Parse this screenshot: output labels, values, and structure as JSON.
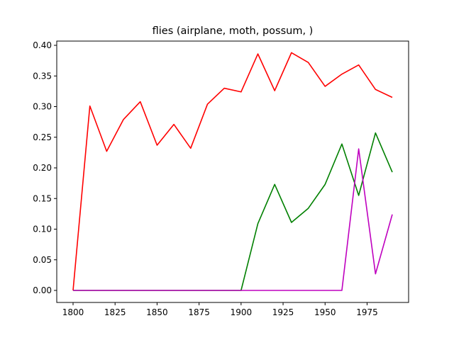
{
  "chart_data": {
    "type": "line",
    "title": "flies (airplane, moth, possum, )",
    "xlabel": "",
    "ylabel": "",
    "xlim": [
      1800,
      1990
    ],
    "ylim": [
      0.0,
      0.4
    ],
    "grid": false,
    "x_ticks": [
      1800,
      1825,
      1850,
      1875,
      1900,
      1925,
      1950,
      1975
    ],
    "x_tick_labels": [
      "1800",
      "1825",
      "1850",
      "1875",
      "1900",
      "1925",
      "1950",
      "1975"
    ],
    "y_ticks": [
      0.0,
      0.05,
      0.1,
      0.15,
      0.2,
      0.25,
      0.3,
      0.35,
      0.4
    ],
    "y_tick_labels": [
      "0.00",
      "0.05",
      "0.10",
      "0.15",
      "0.20",
      "0.25",
      "0.30",
      "0.35",
      "0.40"
    ],
    "x": [
      1800,
      1810,
      1820,
      1830,
      1840,
      1850,
      1860,
      1870,
      1880,
      1890,
      1900,
      1910,
      1920,
      1930,
      1940,
      1950,
      1960,
      1970,
      1980,
      1990
    ],
    "series": [
      {
        "color": "#ff0000",
        "values": [
          0.0,
          0.301,
          0.227,
          0.279,
          0.308,
          0.237,
          0.271,
          0.232,
          0.304,
          0.33,
          0.324,
          0.386,
          0.326,
          0.388,
          0.372,
          0.333,
          0.353,
          0.368,
          0.328,
          0.315
        ]
      },
      {
        "color": "#008000",
        "values": [
          0.0,
          0.0,
          0.0,
          0.0,
          0.0,
          0.0,
          0.0,
          0.0,
          0.0,
          0.0,
          0.0,
          0.109,
          0.173,
          0.111,
          0.134,
          0.173,
          0.239,
          0.155,
          0.257,
          0.193
        ]
      },
      {
        "color": "#bf00bf",
        "values": [
          0.0,
          0.0,
          0.0,
          0.0,
          0.0,
          0.0,
          0.0,
          0.0,
          0.0,
          0.0,
          0.0,
          0.0,
          0.0,
          0.0,
          0.0,
          0.0,
          0.0,
          0.231,
          0.027,
          0.124
        ]
      }
    ]
  }
}
